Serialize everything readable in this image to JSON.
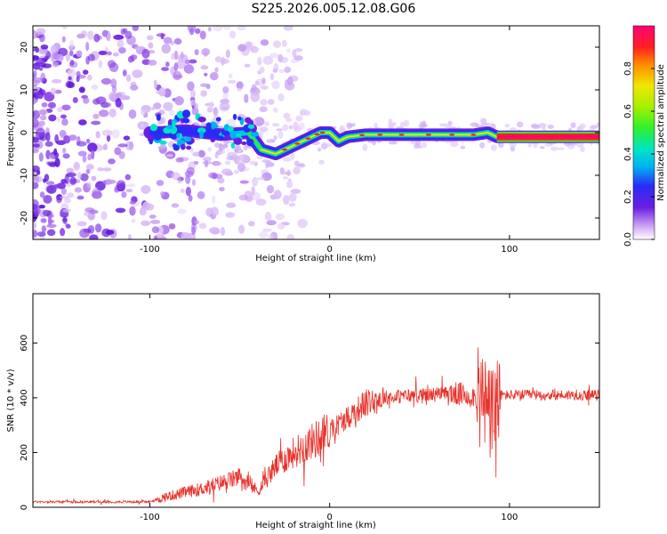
{
  "title": "S225.2026.005.12.08.G06",
  "chart_data": [
    {
      "type": "heatmap",
      "name": "spectrogram",
      "xlabel": "Height of straight line (km)",
      "ylabel": "Frequency (Hz)",
      "xlim": [
        -165,
        150
      ],
      "ylim": [
        -25,
        25
      ],
      "xticks": [
        -100,
        0,
        100
      ],
      "yticks": [
        -20,
        -10,
        0,
        10,
        20
      ],
      "colorbar": {
        "label": "Normalized spectral amplitude",
        "range": [
          0,
          1
        ],
        "ticks": [
          0.0,
          0.2,
          0.4,
          0.6,
          0.8
        ]
      },
      "ridge": [
        {
          "x": -95,
          "y": 0
        },
        {
          "x": -80,
          "y": 0.5
        },
        {
          "x": -60,
          "y": -0.5
        },
        {
          "x": -45,
          "y": 0
        },
        {
          "x": -38,
          "y": -4
        },
        {
          "x": -30,
          "y": -5
        },
        {
          "x": -20,
          "y": -3
        },
        {
          "x": -10,
          "y": -1
        },
        {
          "x": -5,
          "y": 0
        },
        {
          "x": 0,
          "y": 0
        },
        {
          "x": 5,
          "y": -2
        },
        {
          "x": 10,
          "y": -1
        },
        {
          "x": 20,
          "y": -0.5
        },
        {
          "x": 50,
          "y": -0.5
        },
        {
          "x": 80,
          "y": -0.5
        },
        {
          "x": 88,
          "y": 0
        },
        {
          "x": 93,
          "y": -1
        },
        {
          "x": 150,
          "y": -1
        }
      ]
    },
    {
      "type": "line",
      "name": "snr",
      "xlabel": "Height of straight line (km)",
      "ylabel": "SNR (10 * v/v)",
      "xlim": [
        -165,
        150
      ],
      "ylim": [
        0,
        780
      ],
      "xticks": [
        -100,
        0,
        100
      ],
      "yticks": [
        0,
        200,
        400,
        600
      ],
      "color": "#e8322b",
      "envelope": [
        {
          "x": -165,
          "y": 20
        },
        {
          "x": -100,
          "y": 20
        },
        {
          "x": -90,
          "y": 40
        },
        {
          "x": -70,
          "y": 70
        },
        {
          "x": -50,
          "y": 110
        },
        {
          "x": -40,
          "y": 60
        },
        {
          "x": -30,
          "y": 150
        },
        {
          "x": -20,
          "y": 200
        },
        {
          "x": -10,
          "y": 240
        },
        {
          "x": 0,
          "y": 280
        },
        {
          "x": 10,
          "y": 330
        },
        {
          "x": 20,
          "y": 380
        },
        {
          "x": 30,
          "y": 400
        },
        {
          "x": 50,
          "y": 410
        },
        {
          "x": 70,
          "y": 415
        },
        {
          "x": 85,
          "y": 400
        },
        {
          "x": 89,
          "y": 330
        },
        {
          "x": 95,
          "y": 410
        },
        {
          "x": 150,
          "y": 410
        }
      ]
    }
  ]
}
